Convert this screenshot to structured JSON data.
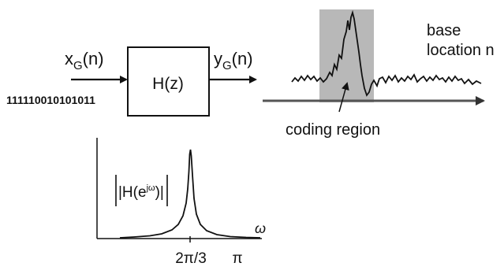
{
  "system": {
    "input_symbol": "x",
    "input_subscript": "G",
    "input_arg": "(n)",
    "output_symbol": "y",
    "output_subscript": "G",
    "output_arg": "(n)",
    "filter_label": "H(z)",
    "input_sequence": "111110010101011"
  },
  "signal_plot": {
    "axis_label_line1": "base",
    "axis_label_line2": "location n",
    "region_label": "coding region",
    "colors": {
      "region_fill": "#b8b8b8",
      "axis": "#555555",
      "trace": "#111111"
    }
  },
  "frequency_response": {
    "ylabel_prefix": "|H(e",
    "ylabel_exp": "jω",
    "ylabel_suffix": ")|",
    "xlabel": "ω",
    "tick_peak": "2π/3",
    "tick_pi": "π"
  }
}
